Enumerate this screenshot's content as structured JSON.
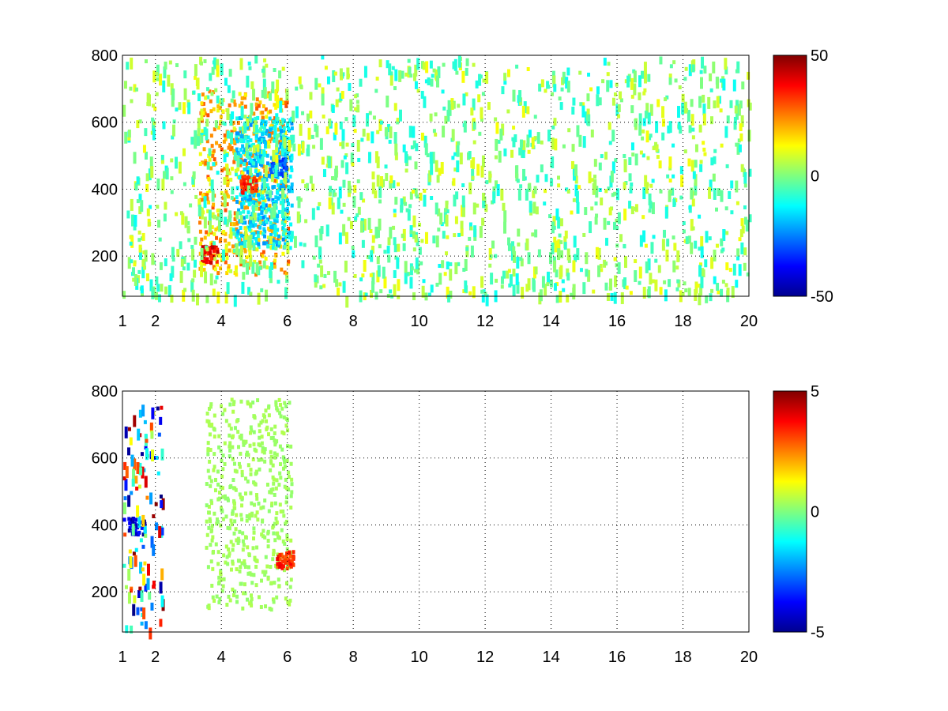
{
  "chart_data": [
    {
      "type": "heatmap",
      "title": "",
      "xlabel": "",
      "ylabel": "",
      "xlim": [
        1,
        20
      ],
      "ylim": [
        80,
        800
      ],
      "x_ticks": [
        1,
        2,
        4,
        6,
        8,
        10,
        12,
        14,
        16,
        18,
        20
      ],
      "y_ticks": [
        200,
        400,
        600,
        800
      ],
      "grid": true,
      "colormap": "jet",
      "color_range": [
        -50,
        50
      ],
      "colorbar_ticks": [
        -50,
        0,
        50
      ],
      "features": [
        {
          "kind": "band",
          "x_from": 3.3,
          "x_to": 6.0,
          "y_from": 150,
          "y_to": 700,
          "value": 30
        },
        {
          "kind": "band",
          "x_from": 4.4,
          "x_to": 6.1,
          "y_from": 230,
          "y_to": 620,
          "value": -25
        },
        {
          "kind": "spot",
          "x": 3.6,
          "y": 210,
          "value": 45
        },
        {
          "kind": "spot",
          "x": 4.8,
          "y": 420,
          "value": 40
        },
        {
          "kind": "spot",
          "x": 5.7,
          "y": 470,
          "value": -35
        }
      ],
      "noise": {
        "x_range": [
          1,
          20
        ],
        "y_range": [
          80,
          800
        ],
        "value_range": [
          -12,
          12
        ]
      }
    },
    {
      "type": "heatmap",
      "title": "",
      "xlabel": "",
      "ylabel": "",
      "xlim": [
        1,
        20
      ],
      "ylim": [
        80,
        800
      ],
      "x_ticks": [
        1,
        2,
        4,
        6,
        8,
        10,
        12,
        14,
        16,
        18,
        20
      ],
      "y_ticks": [
        200,
        400,
        600,
        800
      ],
      "grid": true,
      "colormap": "jet",
      "color_range": [
        -5,
        5
      ],
      "colorbar_ticks": [
        -5,
        0,
        5
      ],
      "features": [
        {
          "kind": "band",
          "x_from": 3.5,
          "x_to": 6.1,
          "y_from": 150,
          "y_to": 780,
          "value": 0.5
        },
        {
          "kind": "spot",
          "x": 5.9,
          "y": 300,
          "value": 4
        },
        {
          "kind": "spot",
          "x": 1.4,
          "y": 400,
          "value": -5
        }
      ],
      "noise": {
        "x_range": [
          1,
          2.2
        ],
        "y_range": [
          80,
          760
        ],
        "value_range": [
          -5,
          5
        ]
      }
    }
  ]
}
